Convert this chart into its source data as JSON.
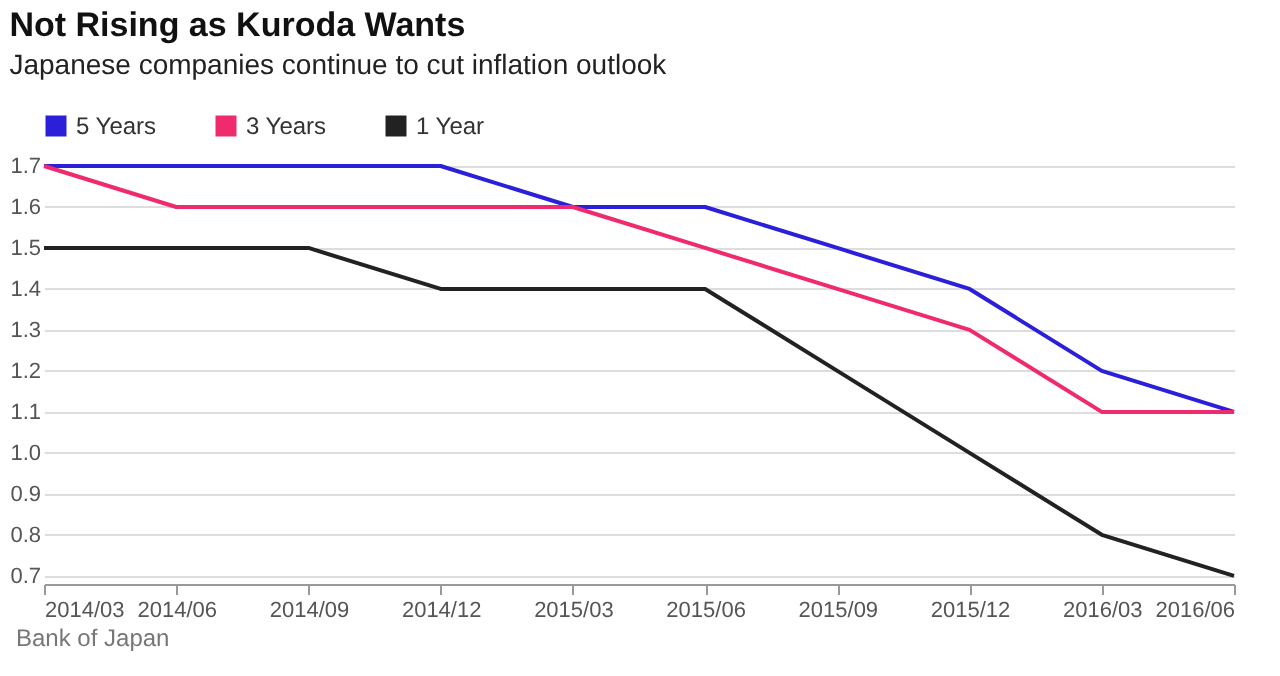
{
  "chart_data": {
    "type": "line",
    "title": "Not Rising as Kuroda Wants",
    "subtitle": "Japanese companies continue to cut inflation outlook",
    "categories": [
      "2014/03",
      "2014/06",
      "2014/09",
      "2014/12",
      "2015/03",
      "2015/06",
      "2015/09",
      "2015/12",
      "2016/03",
      "2016/06"
    ],
    "series": [
      {
        "name": "5 Years",
        "color": "#2b1fd9",
        "values": [
          1.7,
          1.7,
          1.7,
          1.7,
          1.6,
          1.6,
          1.5,
          1.4,
          1.2,
          1.1
        ]
      },
      {
        "name": "3 Years",
        "color": "#ef2a6e",
        "values": [
          1.7,
          1.6,
          1.6,
          1.6,
          1.6,
          1.5,
          1.4,
          1.3,
          1.1,
          1.1
        ]
      },
      {
        "name": "1 Year",
        "color": "#222222",
        "values": [
          1.5,
          1.5,
          1.5,
          1.4,
          1.4,
          1.4,
          1.2,
          1.0,
          0.8,
          0.7
        ]
      }
    ],
    "ylim": [
      0.68,
      1.7
    ],
    "yticks": [
      0.7,
      0.8,
      0.9,
      {
        "value": 1,
        "label": "1.0"
      },
      1.1,
      1.2,
      1.3,
      1.4,
      1.5,
      1.6,
      1.7
    ],
    "grid": "y",
    "legend": "top left",
    "marker": "none",
    "line_style": "solid",
    "annotations": [
      "Bank of Japan"
    ]
  }
}
